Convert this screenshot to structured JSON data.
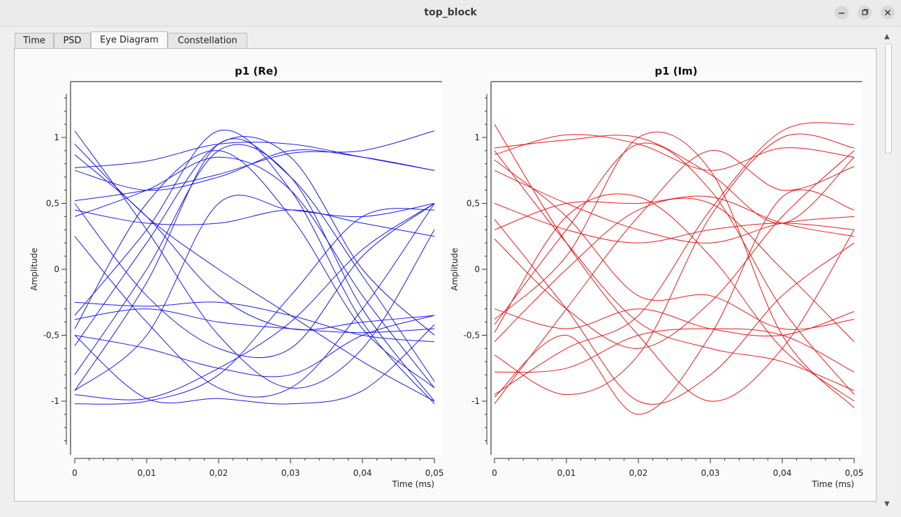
{
  "window": {
    "title": "top_block"
  },
  "tabs": [
    {
      "label": "Time",
      "active": false
    },
    {
      "label": "PSD",
      "active": false
    },
    {
      "label": "Eye Diagram",
      "active": true
    },
    {
      "label": "Constellation",
      "active": false
    }
  ],
  "chart_data": [
    {
      "type": "line",
      "title": "p1 (Re)",
      "xlabel": "Time (ms)",
      "ylabel": "Amplitude",
      "xlim": [
        0,
        0.05
      ],
      "ylim": [
        -1.4,
        1.4
      ],
      "xticks": [
        0,
        0.01,
        0.02,
        0.03,
        0.04,
        0.05
      ],
      "xtick_labels": [
        "0",
        "0,01",
        "0,02",
        "0,03",
        "0,04",
        "0,05"
      ],
      "yticks": [
        1,
        0.5,
        0,
        -0.5,
        -1
      ],
      "ytick_labels": [
        "1",
        "0,5",
        "0",
        "-0,5",
        "-1"
      ],
      "color": "#1a1ae6",
      "traces_description_x": [
        0,
        0.01,
        0.02,
        0.03,
        0.04,
        0.05
      ],
      "series": [
        {
          "values": [
            1.05,
            0.3,
            -0.5,
            -0.9,
            -0.6,
            0.3
          ]
        },
        {
          "values": [
            0.95,
            0.4,
            0.0,
            -0.35,
            -0.7,
            -1.0
          ]
        },
        {
          "values": [
            0.87,
            0.4,
            -0.2,
            -0.45,
            -0.4,
            -0.35
          ]
        },
        {
          "values": [
            0.77,
            0.82,
            0.95,
            0.95,
            0.85,
            0.75
          ]
        },
        {
          "values": [
            0.75,
            0.6,
            0.7,
            0.9,
            0.85,
            0.75
          ]
        },
        {
          "values": [
            0.52,
            0.6,
            0.72,
            0.88,
            0.9,
            1.05
          ]
        },
        {
          "values": [
            0.5,
            -0.2,
            -0.6,
            -0.6,
            0.1,
            0.5
          ]
        },
        {
          "values": [
            0.45,
            0.35,
            0.35,
            0.45,
            0.35,
            0.25
          ]
        },
        {
          "values": [
            0.4,
            0.6,
            0.85,
            0.6,
            -0.2,
            -0.9
          ]
        },
        {
          "values": [
            0.25,
            -0.4,
            -0.9,
            -0.9,
            -0.3,
            0.5
          ]
        },
        {
          "values": [
            -0.25,
            -0.28,
            -0.25,
            -0.35,
            -0.5,
            -0.55
          ]
        },
        {
          "values": [
            -0.35,
            0.3,
            1.05,
            0.6,
            -0.4,
            -1.02
          ]
        },
        {
          "values": [
            -0.38,
            -0.3,
            -0.4,
            -0.45,
            -0.48,
            -0.45
          ]
        },
        {
          "values": [
            -0.45,
            0.5,
            0.9,
            0.4,
            -0.45,
            -0.9
          ]
        },
        {
          "values": [
            -0.5,
            -0.6,
            -0.75,
            -0.8,
            -0.5,
            -0.35
          ]
        },
        {
          "values": [
            -0.58,
            0.2,
            0.95,
            0.85,
            0.0,
            -0.5
          ]
        },
        {
          "values": [
            -0.8,
            0.0,
            0.9,
            0.7,
            -0.3,
            -1.0
          ]
        },
        {
          "values": [
            -0.92,
            -0.5,
            0.5,
            0.45,
            0.4,
            0.5
          ]
        },
        {
          "values": [
            -0.95,
            -0.98,
            -0.75,
            -0.4,
            0.15,
            0.5
          ]
        },
        {
          "values": [
            -1.02,
            -1.0,
            -0.8,
            -0.2,
            0.4,
            0.45
          ]
        },
        {
          "values": [
            -0.92,
            -0.1,
            0.95,
            0.7,
            -0.05,
            -0.85
          ]
        },
        {
          "values": [
            -0.5,
            -0.98,
            -0.98,
            -1.02,
            -0.92,
            -0.42
          ]
        }
      ]
    },
    {
      "type": "line",
      "title": "p1 (Im)",
      "xlabel": "Time (ms)",
      "ylabel": "Amplitude",
      "xlim": [
        0,
        0.05
      ],
      "ylim": [
        -1.4,
        1.4
      ],
      "xticks": [
        0,
        0.01,
        0.02,
        0.03,
        0.04,
        0.05
      ],
      "xtick_labels": [
        "0",
        "0,01",
        "0,02",
        "0,03",
        "0,04",
        "0,05"
      ],
      "yticks": [
        1,
        0.5,
        0,
        -0.5,
        -1
      ],
      "ytick_labels": [
        "1",
        "0,5",
        "0",
        "-0,5",
        "-1"
      ],
      "color": "#e61a1a",
      "series": [
        {
          "values": [
            1.1,
            0.2,
            -0.5,
            -1.0,
            -0.6,
            0.3
          ]
        },
        {
          "values": [
            0.92,
            0.98,
            1.0,
            0.72,
            0.35,
            0.85
          ]
        },
        {
          "values": [
            0.87,
            1.02,
            0.95,
            0.75,
            0.92,
            0.85
          ]
        },
        {
          "values": [
            0.83,
            0.4,
            -0.2,
            -0.2,
            -0.45,
            -0.38
          ]
        },
        {
          "values": [
            0.75,
            0.5,
            0.3,
            0.2,
            0.35,
            0.4
          ]
        },
        {
          "values": [
            0.5,
            0.3,
            0.2,
            0.3,
            0.35,
            0.3
          ]
        },
        {
          "values": [
            0.38,
            -0.3,
            -1.0,
            -0.8,
            -0.2,
            0.2
          ]
        },
        {
          "values": [
            0.3,
            0.5,
            0.5,
            0.55,
            0.35,
            0.25
          ]
        },
        {
          "values": [
            0.23,
            -0.3,
            -0.6,
            -0.25,
            0.4,
            0.9
          ]
        },
        {
          "values": [
            -0.3,
            -0.45,
            -0.3,
            -0.45,
            -0.5,
            -0.32
          ]
        },
        {
          "values": [
            -0.38,
            0.1,
            1.0,
            0.75,
            -0.5,
            -1.05
          ]
        },
        {
          "values": [
            -0.42,
            0.3,
            0.95,
            0.6,
            -0.3,
            -0.95
          ]
        },
        {
          "values": [
            -0.48,
            0.4,
            0.55,
            0.1,
            -0.6,
            -1.0
          ]
        },
        {
          "values": [
            -0.78,
            -0.75,
            -0.5,
            -0.45,
            -0.5,
            -0.78
          ]
        },
        {
          "values": [
            -0.95,
            -0.6,
            -0.35,
            0.45,
            1.05,
            1.1
          ]
        },
        {
          "values": [
            -0.97,
            -0.5,
            -1.1,
            -0.5,
            0.55,
            0.45
          ]
        },
        {
          "values": [
            -1.02,
            -0.3,
            0.4,
            0.9,
            0.6,
            0.78
          ]
        },
        {
          "values": [
            -0.65,
            -0.95,
            -0.65,
            0.4,
            1.0,
            0.92
          ]
        },
        {
          "values": [
            -0.55,
            0.0,
            0.45,
            0.5,
            0.0,
            -0.55
          ]
        },
        {
          "values": [
            0.9,
            0.2,
            -0.4,
            -0.6,
            -0.7,
            -0.92
          ]
        }
      ]
    }
  ]
}
